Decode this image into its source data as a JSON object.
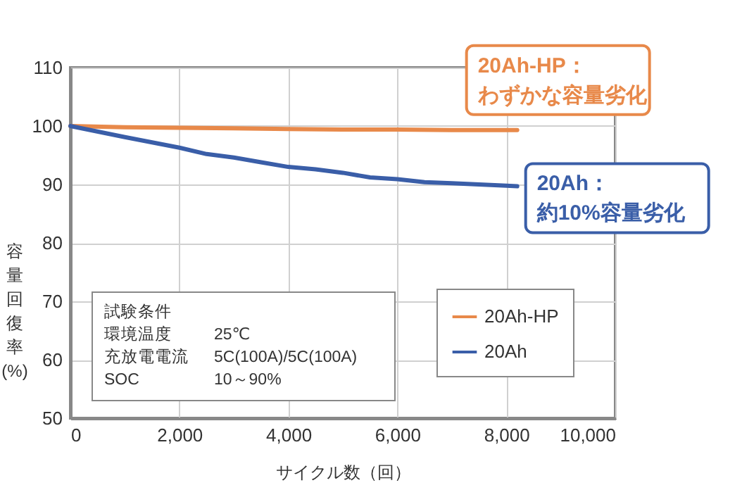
{
  "chart_data": {
    "type": "line",
    "xlabel": "サイクル数（回）",
    "ylabel": "容量回復率(%)",
    "xlim": [
      0,
      10000
    ],
    "xticks": [
      0,
      {
        "value": 2000,
        "label": "2,000"
      },
      {
        "value": 4000,
        "label": "4,000"
      },
      {
        "value": 6000,
        "label": "6,000"
      },
      {
        "value": 8000,
        "label": "8,000"
      },
      {
        "value": 10000,
        "label": "10,000"
      }
    ],
    "ylim": [
      50,
      110
    ],
    "yticks": [
      50,
      60,
      70,
      80,
      90,
      100,
      110
    ],
    "grid": true,
    "legend": "bottom right",
    "marker": "none",
    "line_style": "solid",
    "series": [
      {
        "name": "20Ah-HP",
        "color": "#e8894a",
        "x": [
          0,
          1000,
          2000,
          3000,
          4000,
          5000,
          6000,
          7000,
          8200
        ],
        "values": [
          100,
          99.8,
          99.7,
          99.6,
          99.5,
          99.4,
          99.4,
          99.3,
          99.3
        ]
      },
      {
        "name": "20Ah",
        "color": "#3a5ea8",
        "x": [
          0,
          1000,
          2000,
          2500,
          3000,
          3500,
          4000,
          4500,
          5000,
          5500,
          6000,
          6500,
          7000,
          7500,
          8000,
          8200
        ],
        "values": [
          100,
          98.1,
          96.3,
          95.2,
          94.6,
          93.8,
          93,
          92.6,
          92,
          91.2,
          90.9,
          90.4,
          90.2,
          90,
          89.8,
          89.7
        ]
      }
    ],
    "annotations": [
      {
        "text": "20Ah-HP：わずかな容量劣化",
        "x": 8200,
        "y": 99.3
      },
      {
        "text": "20Ah：約10%容量劣化",
        "x": 8200,
        "y": 89.7
      },
      "試験条件",
      "環境温度 25℃",
      "充放電電流 5C(100A)/5C(100A)",
      "SOC 10～90%"
    ]
  }
}
